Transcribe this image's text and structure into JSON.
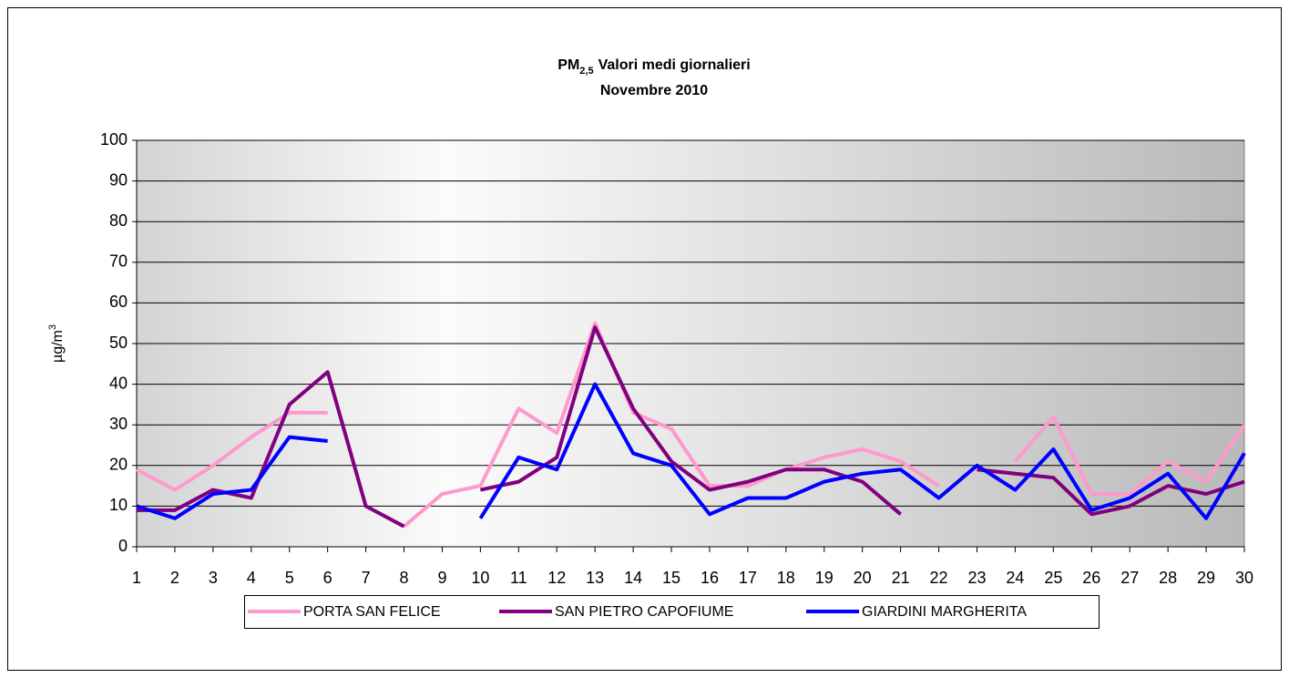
{
  "chart_data": {
    "type": "line",
    "title": [
      "PM",
      "2,5",
      "Valori medi giornalieri"
    ],
    "subtitle": "Novembre 2010",
    "y_label": [
      "µg/m",
      "3"
    ],
    "categories": [
      1,
      2,
      3,
      4,
      5,
      6,
      7,
      8,
      9,
      10,
      11,
      12,
      13,
      14,
      15,
      16,
      17,
      18,
      19,
      20,
      21,
      22,
      23,
      24,
      25,
      26,
      27,
      28,
      29,
      30
    ],
    "ylim": [
      0,
      100
    ],
    "yticks": [
      0,
      10,
      20,
      30,
      40,
      50,
      60,
      70,
      80,
      90,
      100
    ],
    "grid": true,
    "legend": "bottom",
    "series": [
      {
        "name": "PORTA SAN FELICE",
        "color": "#ff99cc",
        "values": [
          19,
          14,
          20,
          27,
          33,
          33,
          null,
          5,
          13,
          15,
          34,
          28,
          55,
          33,
          29,
          15,
          15,
          19,
          22,
          24,
          21,
          15,
          null,
          21,
          32,
          13,
          13,
          21,
          16,
          30
        ]
      },
      {
        "name": "SAN PIETRO CAPOFIUME",
        "color": "#800080",
        "values": [
          9,
          9,
          14,
          12,
          35,
          43,
          10,
          5,
          null,
          14,
          16,
          22,
          54,
          34,
          21,
          14,
          16,
          19,
          19,
          16,
          8,
          null,
          19,
          18,
          17,
          8,
          10,
          15,
          13,
          16
        ]
      },
      {
        "name": "GIARDINI MARGHERITA",
        "color": "#0000ff",
        "values": [
          10,
          7,
          13,
          14,
          27,
          26,
          null,
          null,
          null,
          7,
          22,
          19,
          40,
          23,
          20,
          8,
          12,
          12,
          16,
          18,
          19,
          12,
          20,
          14,
          24,
          9,
          12,
          18,
          7,
          23
        ]
      }
    ]
  }
}
